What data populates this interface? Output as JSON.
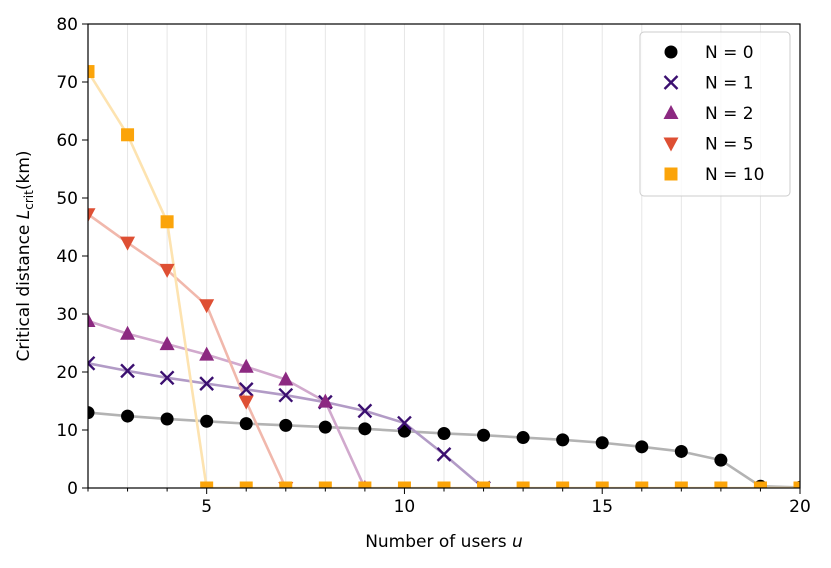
{
  "chart_data": {
    "type": "scatter",
    "xlabel": "Number of users",
    "xlabel_var": "u",
    "ylabel_main": "Critical distance",
    "ylabel_var": "L",
    "ylabel_sub": "crit",
    "ylabel_unit": "(km)",
    "xlim": [
      2,
      20
    ],
    "ylim": [
      0,
      80
    ],
    "xticks": [
      5,
      10,
      15,
      20
    ],
    "yticks": [
      0,
      10,
      20,
      30,
      40,
      50,
      60,
      70,
      80
    ],
    "grid": "vertical minor lines at every integer",
    "legend_position": "top-right",
    "series": [
      {
        "name": "N = 0",
        "marker": "circle",
        "color": "#000000",
        "line_color": "#b3b3b3",
        "x": [
          2,
          3,
          4,
          5,
          6,
          7,
          8,
          9,
          10,
          11,
          12,
          13,
          14,
          15,
          16,
          17,
          18,
          19,
          20
        ],
        "y": [
          13.0,
          12.4,
          11.9,
          11.5,
          11.1,
          10.8,
          10.5,
          10.2,
          9.8,
          9.4,
          9.1,
          8.7,
          8.3,
          7.8,
          7.1,
          6.3,
          4.8,
          0.3,
          0.1
        ]
      },
      {
        "name": "N = 1",
        "marker": "x",
        "color": "#3b0f70",
        "line_color": "#b29bc6",
        "x": [
          2,
          3,
          4,
          5,
          6,
          7,
          8,
          9,
          10,
          11,
          12
        ],
        "y": [
          21.5,
          20.2,
          19.0,
          18.0,
          17.0,
          16.0,
          14.8,
          13.3,
          11.2,
          5.8,
          0
        ]
      },
      {
        "name": "N = 2",
        "marker": "triangle-up",
        "color": "#8c2981",
        "line_color": "#d1a9cd",
        "x": [
          2,
          3,
          4,
          5,
          6,
          7,
          8,
          9
        ],
        "y": [
          28.8,
          26.6,
          24.8,
          23.0,
          20.9,
          18.7,
          14.9,
          0
        ]
      },
      {
        "name": "N = 5",
        "marker": "triangle-down",
        "color": "#de4f33",
        "line_color": "#f1b8ac",
        "x": [
          2,
          3,
          4,
          5,
          6,
          7
        ],
        "y": [
          47.2,
          42.3,
          37.6,
          31.5,
          14.9,
          0
        ]
      },
      {
        "name": "N = 10",
        "marker": "square",
        "color": "#fba40a",
        "line_color": "#fde3b0",
        "x": [
          2,
          3,
          4,
          5,
          6,
          7,
          8,
          9,
          10,
          11,
          12,
          13,
          14,
          15,
          16,
          17,
          18,
          19,
          20
        ],
        "y": [
          71.8,
          60.9,
          45.9,
          0,
          0,
          0,
          0,
          0,
          0,
          0,
          0,
          0,
          0,
          0,
          0,
          0,
          0,
          0,
          0
        ]
      }
    ]
  }
}
